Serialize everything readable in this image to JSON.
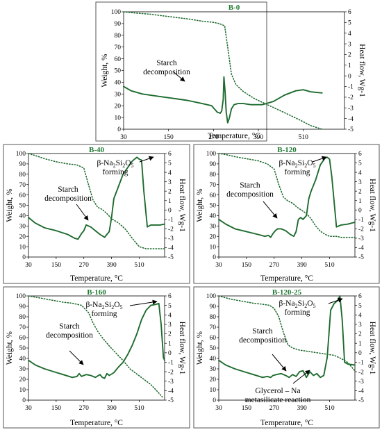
{
  "colors": {
    "series": "#1e6b2e",
    "title": "#1e7a32",
    "frame": "#555555",
    "axis": "#000000"
  },
  "chart_data": [
    {
      "type": "line",
      "title": "B-0",
      "xlabel": "Temperature, °C",
      "ylabel_left": "Weight, %",
      "ylabel_right": "Heat flow, Wg-1",
      "xlim": [
        30,
        620
      ],
      "ylim_left": [
        0,
        100
      ],
      "ylim_right": [
        -5,
        6
      ],
      "x_ticks": [
        30,
        150,
        270,
        390,
        510
      ],
      "y_ticks_left": [
        0,
        10,
        20,
        30,
        40,
        50,
        60,
        70,
        80,
        90,
        100
      ],
      "y_ticks_right": [
        -5,
        -4,
        -3,
        -2,
        -1,
        0,
        1,
        2,
        3,
        4,
        5,
        6
      ],
      "series": [
        {
          "style": "dotted",
          "axis": "left",
          "x": [
            30,
            60,
            100,
            150,
            200,
            240,
            270,
            285,
            293,
            300,
            308,
            318,
            330,
            350,
            380,
            420,
            460,
            500,
            530,
            560
          ],
          "y": [
            100,
            99,
            98,
            96,
            94,
            92,
            91,
            90,
            89,
            88,
            70,
            47,
            38,
            32,
            26,
            20,
            14,
            8,
            3,
            0
          ]
        },
        {
          "style": "solid",
          "axis": "right",
          "x": [
            30,
            50,
            80,
            120,
            160,
            200,
            240,
            265,
            280,
            288,
            292,
            296,
            298,
            301,
            304,
            308,
            312,
            318,
            325,
            335,
            350,
            370,
            400,
            430,
            460,
            490,
            510,
            530,
            560
          ],
          "y": [
            -1.0,
            -1.4,
            -1.7,
            -1.9,
            -2.1,
            -2.3,
            -2.6,
            -2.8,
            -3.4,
            -3.5,
            -3.3,
            -2.2,
            -0.1,
            -1.5,
            -3.4,
            -4.4,
            -4.0,
            -3.1,
            -2.7,
            -2.6,
            -2.6,
            -2.7,
            -2.7,
            -2.4,
            -1.8,
            -1.4,
            -1.3,
            -1.5,
            -1.6
          ]
        }
      ],
      "annotations": [
        {
          "lines": [
            "Starch",
            "decomposition"
          ]
        }
      ]
    },
    {
      "type": "line",
      "title": "B-40",
      "xlabel": "Temperature, °C",
      "ylabel_left": "Weight, %",
      "ylabel_right": "Heat flow, Wg-1",
      "xlim": [
        30,
        620
      ],
      "ylim_left": [
        0,
        100
      ],
      "ylim_right": [
        -5,
        6
      ],
      "x_ticks": [
        30,
        150,
        270,
        390,
        510
      ],
      "y_ticks_left": [
        0,
        10,
        20,
        30,
        40,
        50,
        60,
        70,
        80,
        90,
        100
      ],
      "y_ticks_right": [
        -5,
        -4,
        -3,
        -2,
        -1,
        0,
        1,
        2,
        3,
        4,
        5,
        6
      ],
      "series": [
        {
          "style": "dotted",
          "axis": "left",
          "x": [
            30,
            60,
            100,
            150,
            200,
            240,
            270,
            290,
            310,
            330,
            350,
            370,
            390,
            420,
            450,
            480,
            510,
            540,
            560,
            600,
            620
          ],
          "y": [
            100,
            98,
            95,
            92,
            90,
            89,
            86,
            70,
            55,
            48,
            46,
            42,
            37,
            33,
            27,
            18,
            10,
            8,
            8,
            8,
            8
          ]
        },
        {
          "style": "solid",
          "axis": "right",
          "x": [
            30,
            60,
            100,
            150,
            200,
            230,
            245,
            260,
            270,
            280,
            300,
            320,
            340,
            360,
            370,
            380,
            390,
            400,
            420,
            440,
            460,
            480,
            500,
            510,
            520,
            530,
            545,
            560,
            600,
            620
          ],
          "y": [
            -0.8,
            -1.4,
            -1.9,
            -2.2,
            -2.6,
            -3.0,
            -3.1,
            -2.5,
            -2.2,
            -1.6,
            -1.8,
            -2.2,
            -2.6,
            -2.9,
            -2.6,
            -2.3,
            -0.8,
            1.2,
            2.5,
            3.8,
            4.5,
            5.2,
            5.6,
            5.4,
            5.3,
            2.0,
            -1.8,
            -1.6,
            -1.6,
            -1.5
          ]
        }
      ],
      "annotations": [
        {
          "lines": [
            "β-Na2Si2O5",
            "forming"
          ]
        },
        {
          "lines": [
            "Starch",
            "decomposition"
          ]
        }
      ]
    },
    {
      "type": "line",
      "title": "B-120",
      "xlabel": "Temperature, °C",
      "ylabel_left": "Weight, %",
      "ylabel_right": "Heat flow, Wg-1",
      "xlim": [
        30,
        620
      ],
      "ylim_left": [
        0,
        100
      ],
      "ylim_right": [
        -5,
        6
      ],
      "x_ticks": [
        30,
        150,
        270,
        390,
        510
      ],
      "y_ticks_left": [
        0,
        10,
        20,
        30,
        40,
        50,
        60,
        70,
        80,
        90,
        100
      ],
      "y_ticks_right": [
        -5,
        -4,
        -3,
        -2,
        -1,
        0,
        1,
        2,
        3,
        4,
        5,
        6
      ],
      "series": [
        {
          "style": "dotted",
          "axis": "left",
          "x": [
            30,
            60,
            100,
            150,
            200,
            240,
            270,
            290,
            310,
            330,
            350,
            370,
            390,
            410,
            430,
            450,
            470,
            490,
            510,
            540,
            560,
            600,
            620
          ],
          "y": [
            100,
            99,
            97,
            95,
            93,
            90,
            85,
            70,
            58,
            54,
            52,
            48,
            45,
            42,
            37,
            30,
            25,
            22,
            20,
            20,
            19,
            19,
            19
          ]
        },
        {
          "style": "solid",
          "axis": "right",
          "x": [
            30,
            60,
            100,
            150,
            200,
            230,
            245,
            255,
            265,
            275,
            285,
            300,
            320,
            340,
            355,
            365,
            375,
            385,
            395,
            410,
            420,
            430,
            450,
            470,
            490,
            500,
            510,
            520,
            540,
            560,
            590,
            620
          ],
          "y": [
            -1.0,
            -1.5,
            -2.0,
            -2.3,
            -2.6,
            -2.8,
            -2.7,
            -2.9,
            -2.5,
            -2.2,
            -2.0,
            -2.0,
            -2.2,
            -2.6,
            -2.8,
            -2.3,
            -1.0,
            -0.8,
            -1.0,
            -0.6,
            1.2,
            2.0,
            3.2,
            4.8,
            5.5,
            5.6,
            5.4,
            3.5,
            -1.8,
            -1.6,
            -1.5,
            -1.3
          ]
        }
      ],
      "annotations": [
        {
          "lines": [
            "β-Na2Si2O5",
            "forming"
          ]
        },
        {
          "lines": [
            "Starch",
            "decomposition"
          ]
        }
      ]
    },
    {
      "type": "line",
      "title": "B-160",
      "xlabel": "Temperature, °C",
      "ylabel_left": "Weight, %",
      "ylabel_right": "Heat flow, Wg-1",
      "xlim": [
        30,
        620
      ],
      "ylim_left": [
        0,
        100
      ],
      "ylim_right": [
        -5,
        6
      ],
      "x_ticks": [
        30,
        150,
        270,
        390,
        510
      ],
      "y_ticks_left": [
        0,
        10,
        20,
        30,
        40,
        50,
        60,
        70,
        80,
        90,
        100
      ],
      "y_ticks_right": [
        -5,
        -4,
        -3,
        -2,
        -1,
        0,
        1,
        2,
        3,
        4,
        5,
        6
      ],
      "series": [
        {
          "style": "dotted",
          "axis": "left",
          "x": [
            30,
            80,
            130,
            180,
            220,
            260,
            290,
            310,
            330,
            350,
            380,
            410,
            440,
            470,
            500,
            530,
            560,
            590,
            610
          ],
          "y": [
            100,
            98,
            96,
            94,
            93,
            91,
            84,
            74,
            66,
            60,
            52,
            45,
            38,
            30,
            25,
            20,
            15,
            8,
            3
          ]
        },
        {
          "style": "solid",
          "axis": "right",
          "x": [
            30,
            60,
            100,
            140,
            180,
            220,
            240,
            250,
            260,
            270,
            280,
            300,
            320,
            340,
            350,
            360,
            370,
            380,
            400,
            420,
            440,
            460,
            480,
            500,
            520,
            540,
            560,
            580,
            595,
            605,
            615,
            620
          ],
          "y": [
            -0.8,
            -1.3,
            -1.7,
            -2.0,
            -2.3,
            -2.6,
            -2.5,
            -2.2,
            -2.5,
            -2.4,
            -2.3,
            -2.4,
            -2.6,
            -2.3,
            -2.6,
            -2.7,
            -2.2,
            -2.4,
            -2.1,
            -1.5,
            -1.0,
            -0.2,
            0.8,
            2.0,
            3.5,
            4.5,
            5.0,
            5.1,
            5.2,
            3.0,
            -0.5,
            -0.8
          ]
        }
      ],
      "annotations": [
        {
          "lines": [
            "β-Na2Si2O5",
            "forming"
          ]
        },
        {
          "lines": [
            "Starch",
            "decomposition"
          ]
        }
      ]
    },
    {
      "type": "line",
      "title": "B-120-25",
      "xlabel": "Temperature, °C",
      "ylabel_left": "Weight, %",
      "ylabel_right": "Heat flow, Wg-1",
      "xlim": [
        30,
        620
      ],
      "ylim_left": [
        0,
        100
      ],
      "ylim_right": [
        -5,
        6
      ],
      "x_ticks": [
        30,
        150,
        270,
        390,
        510
      ],
      "y_ticks_left": [
        0,
        10,
        20,
        30,
        40,
        50,
        60,
        70,
        80,
        90,
        100
      ],
      "y_ticks_right": [
        -5,
        -4,
        -3,
        -2,
        -1,
        0,
        1,
        2,
        3,
        4,
        5,
        6
      ],
      "series": [
        {
          "style": "dotted",
          "axis": "left",
          "x": [
            30,
            80,
            130,
            180,
            220,
            250,
            270,
            290,
            310,
            330,
            350,
            380,
            410,
            440,
            470,
            500,
            530,
            560,
            590,
            620
          ],
          "y": [
            100,
            97,
            95,
            93,
            92,
            91,
            88,
            80,
            65,
            53,
            50,
            48,
            47,
            46,
            45,
            44,
            43,
            40,
            36,
            28
          ]
        },
        {
          "style": "solid",
          "axis": "right",
          "x": [
            30,
            60,
            100,
            140,
            180,
            220,
            240,
            255,
            265,
            280,
            300,
            320,
            335,
            350,
            365,
            380,
            395,
            410,
            425,
            440,
            455,
            470,
            485,
            500,
            515,
            530,
            545,
            555,
            565,
            575,
            590,
            620
          ],
          "y": [
            -0.8,
            -1.3,
            -1.7,
            -2.0,
            -2.3,
            -2.6,
            -2.5,
            -2.6,
            -2.4,
            -2.3,
            -2.2,
            -2.4,
            -2.6,
            -2.3,
            -2.5,
            -2.0,
            -1.9,
            -2.6,
            -2.0,
            -2.4,
            -2.2,
            -2.6,
            -2.4,
            -0.5,
            4.5,
            5.2,
            5.5,
            6.0,
            3.5,
            -1.0,
            -1.2,
            -1.3
          ]
        }
      ],
      "annotations": [
        {
          "lines": [
            "β-Na2Si2O5",
            "forming"
          ]
        },
        {
          "lines": [
            "Starch",
            "decomposition"
          ]
        },
        {
          "lines": [
            "Glycerol – Na",
            "metasilicate reaction"
          ]
        }
      ]
    }
  ]
}
